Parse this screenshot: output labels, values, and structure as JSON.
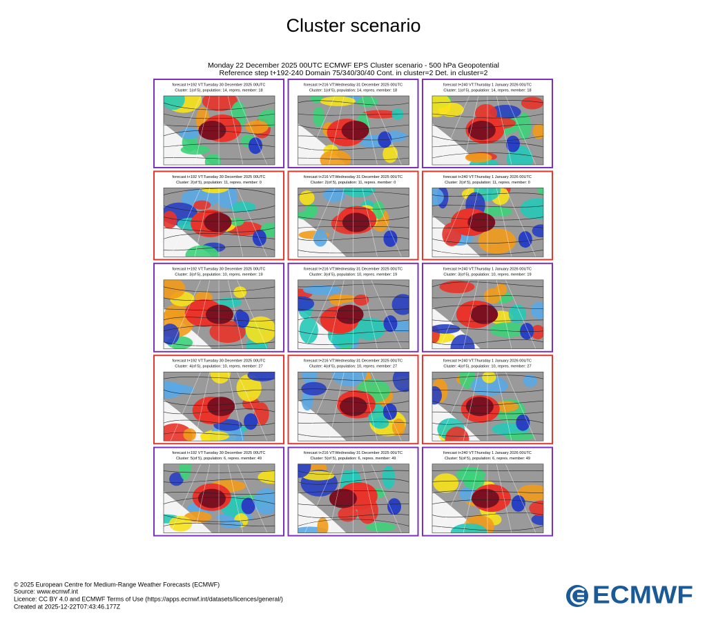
{
  "title": "Cluster scenario",
  "figure": {
    "heading": [
      "Monday 22 December 2025 00UTC ECMWF EPS Cluster scenario - 500 hPa Geopotential",
      "Reference step t+192-240 Domain 75/340/30/40 Cont. in cluster=2 Det. in cluster=2"
    ],
    "rows": [
      {
        "frame_color": "#7b2fbe",
        "panels": [
          [
            "forecast t+192 VT:Tuesday 30 December 2025 00UTC",
            "Cluster: 1(of 5), population: 14, repres. member: 18"
          ],
          [
            "forecast t+216 VT:Wednesday 31 December 2025 00UTC",
            "Cluster: 1(of 5), population: 14, repres. member: 18"
          ],
          [
            "forecast t+240 VT:Thursday 1 January 2026 00UTC",
            "Cluster: 1(of 5), population: 14, repres. member: 18"
          ]
        ]
      },
      {
        "frame_color": "#e8342a",
        "panels": [
          [
            "forecast t+192 VT:Tuesday 30 December 2025 00UTC",
            "Cluster: 2(of 5), population: 11, repres. member: 0"
          ],
          [
            "forecast t+216 VT:Wednesday 31 December 2025 00UTC",
            "Cluster: 2(of 5), population: 11, repres. member: 0"
          ],
          [
            "forecast t+240 VT:Thursday 1 January 2026 00UTC",
            "Cluster: 2(of 5), population: 11, repres. member: 0"
          ]
        ]
      },
      {
        "frame_color": "#7b2fbe",
        "panels": [
          [
            "forecast t+192 VT:Tuesday 30 December 2025 00UTC",
            "Cluster: 3(of 5), population: 10, repres. member: 19"
          ],
          [
            "forecast t+216 VT:Wednesday 31 December 2025 00UTC",
            "Cluster: 3(of 5), population: 10, repres. member: 19"
          ],
          [
            "forecast t+240 VT:Thursday 1 January 2026 00UTC",
            "Cluster: 3(of 5), population: 10, repres. member: 19"
          ]
        ]
      },
      {
        "frame_color": "#e8342a",
        "panels": [
          [
            "forecast t+192 VT:Tuesday 30 December 2025 00UTC",
            "Cluster: 4(of 5), population: 10, repres. member: 27"
          ],
          [
            "forecast t+216 VT:Wednesday 31 December 2025 00UTC",
            "Cluster: 4(of 5), population: 10, repres. member: 27"
          ],
          [
            "forecast t+240 VT:Thursday 1 January 2026 00UTC",
            "Cluster: 4(of 5), population: 10, repres. member: 27"
          ]
        ]
      },
      {
        "frame_color": "#7b2fbe",
        "panels": [
          [
            "forecast t+192 VT:Tuesday 30 December 2025 00UTC",
            "Cluster: 5(of 5), population: 6, repres. member: 49"
          ],
          [
            "forecast t+216 VT:Wednesday 31 December 2025 00UTC",
            "Cluster: 5(of 5), population: 6, repres. member: 49"
          ],
          [
            "forecast t+240 VT:Thursday 1 January 2026 00UTC",
            "Cluster: 5(of 5), population: 6, repres. member: 49"
          ]
        ]
      }
    ]
  },
  "footer": [
    "© 2025 European Centre for Medium-Range Weather Forecasts (ECMWF)",
    "Source: www.ecmwf.int",
    "Licence: CC BY 4.0 and ECMWF Terms of Use (https://apps.ecmwf.int/datasets/licences/general/)",
    "Created at 2025-12-22T07:43:46.177Z"
  ],
  "logo": "ECMWF"
}
